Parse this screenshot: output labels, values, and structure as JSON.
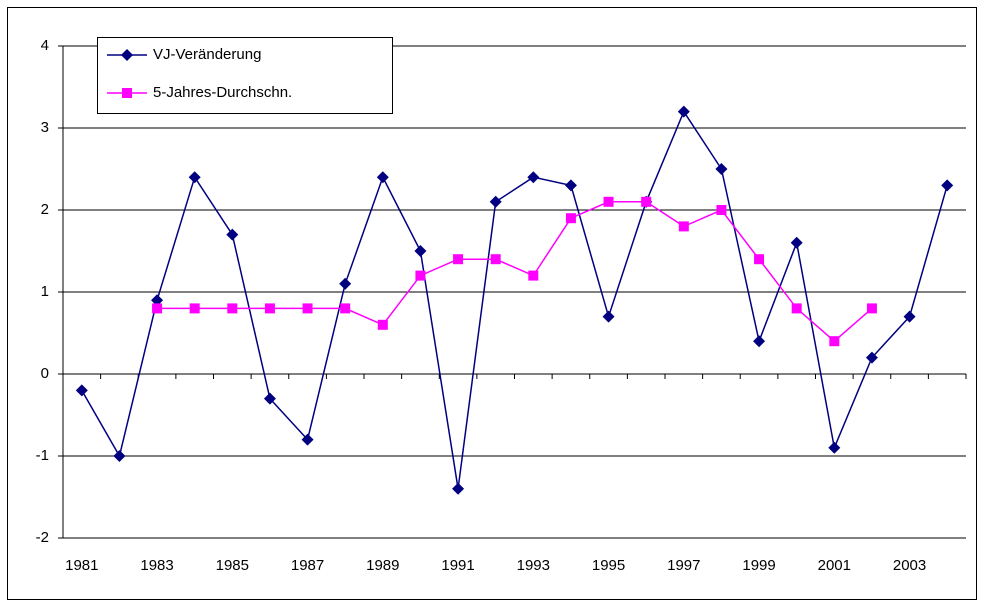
{
  "chart_data": {
    "type": "line",
    "categories": [
      "1981",
      null,
      "1983",
      null,
      "1985",
      null,
      "1987",
      null,
      "1989",
      null,
      "1991",
      null,
      "1993",
      null,
      "1995",
      null,
      "1997",
      null,
      "1999",
      null,
      "2001",
      null,
      "2003",
      null
    ],
    "series": [
      {
        "name": "VJ-Veränderung",
        "color": "#000080",
        "marker": "diamond",
        "values": [
          -0.2,
          -1.0,
          0.9,
          2.4,
          1.7,
          -0.3,
          -0.8,
          1.1,
          2.4,
          1.5,
          -1.4,
          2.1,
          2.4,
          2.3,
          0.7,
          2.1,
          3.2,
          2.5,
          0.4,
          1.6,
          -0.9,
          0.2,
          0.7,
          2.3
        ]
      },
      {
        "name": "5-Jahres-Durchschn.",
        "color": "#ff00ff",
        "marker": "square",
        "values": [
          null,
          null,
          0.8,
          0.8,
          0.8,
          0.8,
          0.8,
          0.8,
          0.6,
          1.2,
          1.4,
          1.4,
          1.2,
          1.9,
          2.1,
          2.1,
          1.8,
          2.0,
          1.4,
          0.8,
          0.4,
          0.8,
          null,
          null
        ]
      }
    ],
    "ylim": [
      -2,
      4
    ],
    "yticks": [
      -2,
      -1,
      0,
      1,
      2,
      3,
      4
    ],
    "grid": true,
    "legend": "top-left"
  }
}
